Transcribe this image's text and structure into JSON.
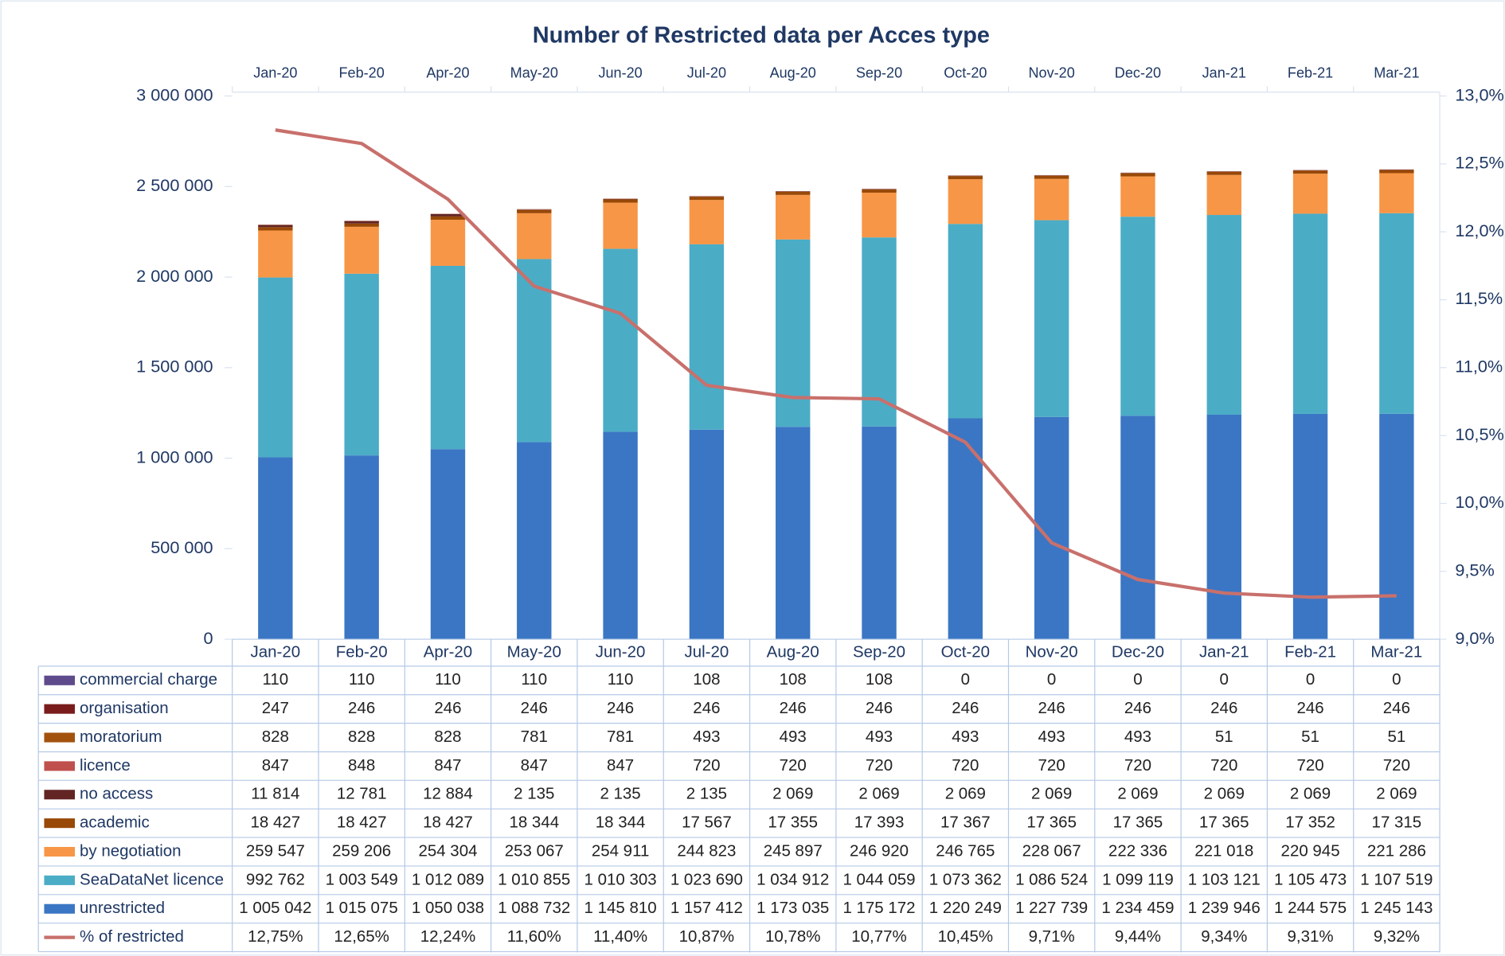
{
  "chart_data": {
    "type": "bar",
    "stacked": true,
    "title": "Number of Restricted data per Acces type",
    "categories": [
      "Jan-20",
      "Feb-20",
      "Apr-20",
      "May-20",
      "Jun-20",
      "Jul-20",
      "Aug-20",
      "Sep-20",
      "Oct-20",
      "Nov-20",
      "Dec-20",
      "Jan-21",
      "Feb-21",
      "Mar-21"
    ],
    "ylim": [
      0,
      3000000
    ],
    "yticks": [
      0,
      {
        "value": 500000,
        "label": "500 000"
      },
      {
        "value": 1000000,
        "label": "1 000 000"
      },
      {
        "value": 1500000,
        "label": "1 500 000"
      },
      {
        "value": 2000000,
        "label": "2 000 000"
      },
      {
        "value": 2500000,
        "label": "2 500 000"
      },
      {
        "value": 3000000,
        "label": "3 000 000"
      }
    ],
    "y2lim": [
      9,
      13
    ],
    "y2ticks": [
      {
        "value": 9,
        "label": "9,0%"
      },
      {
        "value": 9.5,
        "label": "9,5%"
      },
      {
        "value": 10,
        "label": "10,0%"
      },
      {
        "value": 10.5,
        "label": "10,5%"
      },
      {
        "value": 11,
        "label": "11,0%"
      },
      {
        "value": 11.5,
        "label": "11,5%"
      },
      {
        "value": 12,
        "label": "12,0%"
      },
      {
        "value": 12.5,
        "label": "12,5%"
      },
      {
        "value": 13,
        "label": "13,0%"
      }
    ],
    "series": [
      {
        "name": "commercial charge",
        "color": "#5e4b8b",
        "values": [
          110,
          110,
          110,
          110,
          110,
          108,
          108,
          108,
          0,
          0,
          0,
          0,
          0,
          0
        ],
        "value_labels": [
          "110",
          "110",
          "110",
          "110",
          "110",
          "108",
          "108",
          "108",
          "0",
          "0",
          "0",
          "0",
          "0",
          "0"
        ]
      },
      {
        "name": "organisation",
        "color": "#7a1c1c",
        "values": [
          247,
          246,
          246,
          246,
          246,
          246,
          246,
          246,
          246,
          246,
          246,
          246,
          246,
          246
        ],
        "value_labels": [
          "247",
          "246",
          "246",
          "246",
          "246",
          "246",
          "246",
          "246",
          "246",
          "246",
          "246",
          "246",
          "246",
          "246"
        ]
      },
      {
        "name": "moratorium",
        "color": "#a3520e",
        "values": [
          828,
          828,
          828,
          781,
          781,
          493,
          493,
          493,
          493,
          493,
          493,
          51,
          51,
          51
        ],
        "value_labels": [
          "828",
          "828",
          "828",
          "781",
          "781",
          "493",
          "493",
          "493",
          "493",
          "493",
          "493",
          "51",
          "51",
          "51"
        ]
      },
      {
        "name": "licence",
        "color": "#c0504d",
        "values": [
          847,
          848,
          847,
          847,
          847,
          720,
          720,
          720,
          720,
          720,
          720,
          720,
          720,
          720
        ],
        "value_labels": [
          "847",
          "848",
          "847",
          "847",
          "847",
          "720",
          "720",
          "720",
          "720",
          "720",
          "720",
          "720",
          "720",
          "720"
        ]
      },
      {
        "name": "no access",
        "color": "#632424",
        "values": [
          11814,
          12781,
          12884,
          2135,
          2135,
          2135,
          2069,
          2069,
          2069,
          2069,
          2069,
          2069,
          2069,
          2069
        ],
        "value_labels": [
          "11 814",
          "12 781",
          "12 884",
          "2 135",
          "2 135",
          "2 135",
          "2 069",
          "2 069",
          "2 069",
          "2 069",
          "2 069",
          "2 069",
          "2 069",
          "2 069"
        ]
      },
      {
        "name": "academic",
        "color": "#984807",
        "values": [
          18427,
          18427,
          18427,
          18344,
          18344,
          17567,
          17355,
          17393,
          17367,
          17365,
          17365,
          17365,
          17352,
          17315
        ],
        "value_labels": [
          "18 427",
          "18 427",
          "18 427",
          "18 344",
          "18 344",
          "17 567",
          "17 355",
          "17 393",
          "17 367",
          "17 365",
          "17 365",
          "17 365",
          "17 352",
          "17 315"
        ]
      },
      {
        "name": "by negotiation",
        "color": "#f79646",
        "values": [
          259547,
          259206,
          254304,
          253067,
          254911,
          244823,
          245897,
          246920,
          246765,
          228067,
          222336,
          221018,
          220945,
          221286
        ],
        "value_labels": [
          "259 547",
          "259 206",
          "254 304",
          "253 067",
          "254 911",
          "244 823",
          "245 897",
          "246 920",
          "246 765",
          "228 067",
          "222 336",
          "221 018",
          "220 945",
          "221 286"
        ]
      },
      {
        "name": "SeaDataNet licence",
        "color": "#4bacc6",
        "values": [
          992762,
          1003549,
          1012089,
          1010855,
          1010303,
          1023690,
          1034912,
          1044059,
          1073362,
          1086524,
          1099119,
          1103121,
          1105473,
          1107519
        ],
        "value_labels": [
          "992 762",
          "1 003 549",
          "1 012 089",
          "1 010 855",
          "1 010 303",
          "1 023 690",
          "1 034 912",
          "1 044 059",
          "1 073 362",
          "1 086 524",
          "1 099 119",
          "1 103 121",
          "1 105 473",
          "1 107 519"
        ]
      },
      {
        "name": "unrestricted",
        "color": "#3b76c4",
        "values": [
          1005042,
          1015075,
          1050038,
          1088732,
          1145810,
          1157412,
          1173035,
          1175172,
          1220249,
          1227739,
          1234459,
          1239946,
          1244575,
          1245143
        ],
        "value_labels": [
          "1 005 042",
          "1 015 075",
          "1 050 038",
          "1 088 732",
          "1 145 810",
          "1 157 412",
          "1 173 035",
          "1 175 172",
          "1 220 249",
          "1 227 739",
          "1 234 459",
          "1 239 946",
          "1 244 575",
          "1 245 143"
        ]
      },
      {
        "name": "% of restricted",
        "color": "#c8706c",
        "type": "line",
        "axis": "y2",
        "values": [
          12.75,
          12.65,
          12.24,
          11.6,
          11.4,
          10.87,
          10.78,
          10.77,
          10.45,
          9.71,
          9.44,
          9.34,
          9.31,
          9.32
        ],
        "value_labels": [
          "12,75%",
          "12,65%",
          "12,24%",
          "11,60%",
          "11,40%",
          "10,87%",
          "10,78%",
          "10,77%",
          "10,45%",
          "9,71%",
          "9,44%",
          "9,34%",
          "9,31%",
          "9,32%"
        ]
      }
    ]
  }
}
